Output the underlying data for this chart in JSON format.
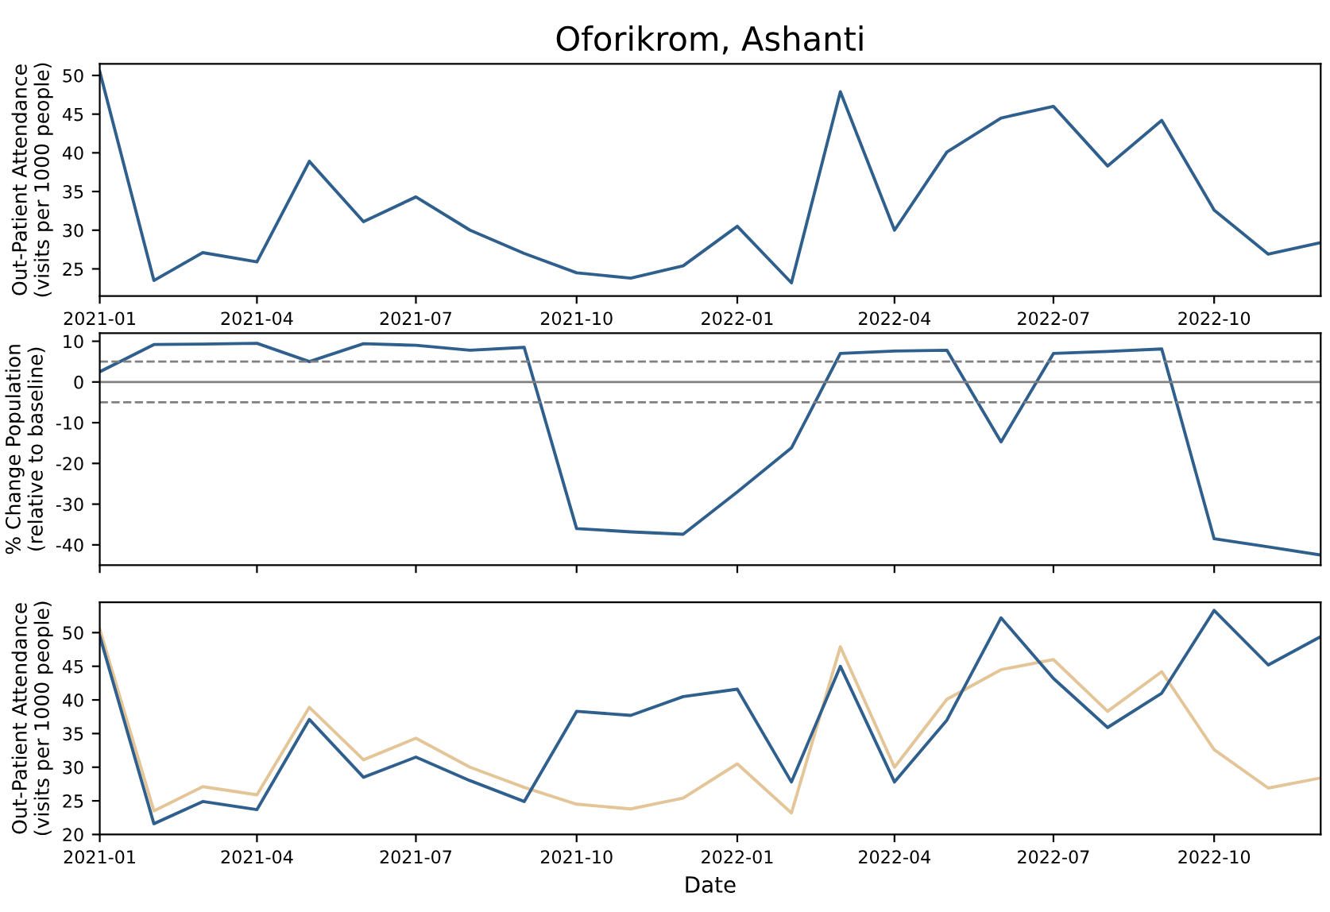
{
  "chart_data": [
    {
      "type": "line",
      "title": "Oforikrom, Ashanti",
      "ylabel": "Out-Patient Attendance\n(visits per 1000 people)",
      "x": [
        "2021-01",
        "2021-02",
        "2021-03",
        "2021-04",
        "2021-05",
        "2021-06",
        "2021-07",
        "2021-08",
        "2021-09",
        "2021-10",
        "2021-11",
        "2021-12",
        "2022-01",
        "2022-02",
        "2022-03",
        "2022-04",
        "2022-05",
        "2022-06",
        "2022-07",
        "2022-08",
        "2022-09",
        "2022-10",
        "2022-11",
        "2022-12"
      ],
      "series": [
        {
          "color": "#2f5f8c",
          "values": [
            50.5,
            23.5,
            27.1,
            25.9,
            38.9,
            31.1,
            34.3,
            30.0,
            27.0,
            24.5,
            23.8,
            25.4,
            30.5,
            23.2,
            47.9,
            30.0,
            40.1,
            44.5,
            46.0,
            38.3,
            44.2,
            32.6,
            26.9,
            28.4
          ]
        }
      ],
      "xlim": [
        "2021-01",
        "2022-12"
      ],
      "xticks": [
        {
          "value": "2021-01",
          "label": "2021-01"
        },
        {
          "value": "2021-04",
          "label": "2021-04"
        },
        {
          "value": "2021-07",
          "label": "2021-07"
        },
        {
          "value": "2021-10",
          "label": "2021-10"
        },
        {
          "value": "2022-01",
          "label": "2022-01"
        },
        {
          "value": "2022-04",
          "label": "2022-04"
        },
        {
          "value": "2022-07",
          "label": "2022-07"
        },
        {
          "value": "2022-10",
          "label": "2022-10"
        }
      ],
      "ylim": [
        21.5,
        51.5
      ],
      "yticks": [
        25,
        30,
        35,
        40,
        45,
        50
      ],
      "grid": false,
      "legend": false
    },
    {
      "type": "line",
      "ylabel": "% Change Population\n(relative to baseline)",
      "x": [
        "2021-01",
        "2021-02",
        "2021-03",
        "2021-04",
        "2021-05",
        "2021-06",
        "2021-07",
        "2021-08",
        "2021-09",
        "2021-10",
        "2021-11",
        "2021-12",
        "2022-01",
        "2022-02",
        "2022-03",
        "2022-04",
        "2022-05",
        "2022-06",
        "2022-07",
        "2022-08",
        "2022-09",
        "2022-10",
        "2022-11",
        "2022-12"
      ],
      "series": [
        {
          "color": "#2f5f8c",
          "values": [
            2.5,
            9.2,
            9.3,
            9.5,
            5.0,
            9.4,
            9.0,
            7.8,
            8.5,
            -36,
            -36.8,
            -37.4,
            -27,
            -16.2,
            7,
            7.6,
            7.8,
            -14.7,
            7,
            7.5,
            8.1,
            -38.5,
            -40.5,
            -42.5
          ]
        }
      ],
      "xlim": [
        "2021-01",
        "2022-12"
      ],
      "xticks": [
        {
          "value": "2021-01",
          "label": null
        },
        {
          "value": "2021-04",
          "label": null
        },
        {
          "value": "2021-07",
          "label": null
        },
        {
          "value": "2021-10",
          "label": null
        },
        {
          "value": "2022-01",
          "label": null
        },
        {
          "value": "2022-04",
          "label": null
        },
        {
          "value": "2022-07",
          "label": null
        },
        {
          "value": "2022-10",
          "label": null
        }
      ],
      "ylim": [
        -45,
        12
      ],
      "yticks": [
        -40,
        -30,
        -20,
        -10,
        0,
        10
      ],
      "tick_labels": "y",
      "grid": false,
      "legend": false,
      "ref_lines": [
        {
          "axis": "y",
          "value": 0,
          "color": "#808080",
          "line_style": "solid"
        },
        {
          "axis": "y",
          "value": 5,
          "color": "#808080",
          "line_style": "dashed"
        },
        {
          "axis": "y",
          "value": -5,
          "color": "#808080",
          "line_style": "dashed"
        }
      ]
    },
    {
      "type": "line",
      "xlabel": "Date",
      "ylabel": "Out-Patient Attendance\n(visits per 1000 people)",
      "x": [
        "2021-01",
        "2021-02",
        "2021-03",
        "2021-04",
        "2021-05",
        "2021-06",
        "2021-07",
        "2021-08",
        "2021-09",
        "2021-10",
        "2021-11",
        "2021-12",
        "2022-01",
        "2022-02",
        "2022-03",
        "2022-04",
        "2022-05",
        "2022-06",
        "2022-07",
        "2022-08",
        "2022-09",
        "2022-10",
        "2022-11",
        "2022-12"
      ],
      "series": [
        {
          "color": "#e3c597",
          "values": [
            50.5,
            23.5,
            27.1,
            25.9,
            38.9,
            31.1,
            34.3,
            30.0,
            27.0,
            24.5,
            23.8,
            25.4,
            30.5,
            23.2,
            47.9,
            30.0,
            40.1,
            44.5,
            46.0,
            38.3,
            44.2,
            32.6,
            26.9,
            28.4
          ]
        },
        {
          "color": "#2f5f8c",
          "values": [
            49.5,
            21.6,
            24.9,
            23.7,
            37.1,
            28.5,
            31.5,
            28.0,
            24.9,
            38.3,
            37.7,
            40.5,
            41.6,
            27.8,
            45.0,
            27.8,
            37.0,
            52.2,
            43.2,
            35.9,
            41.0,
            53.3,
            45.2,
            49.4
          ]
        }
      ],
      "xlim": [
        "2021-01",
        "2022-12"
      ],
      "xticks": [
        {
          "value": "2021-01",
          "label": "2021-01"
        },
        {
          "value": "2021-04",
          "label": "2021-04"
        },
        {
          "value": "2021-07",
          "label": "2021-07"
        },
        {
          "value": "2021-10",
          "label": "2021-10"
        },
        {
          "value": "2022-01",
          "label": "2022-01"
        },
        {
          "value": "2022-04",
          "label": "2022-04"
        },
        {
          "value": "2022-07",
          "label": "2022-07"
        },
        {
          "value": "2022-10",
          "label": "2022-10"
        }
      ],
      "ylim": [
        20,
        54.5
      ],
      "yticks": [
        20,
        25,
        30,
        35,
        40,
        45,
        50
      ],
      "grid": false,
      "legend": false
    }
  ]
}
